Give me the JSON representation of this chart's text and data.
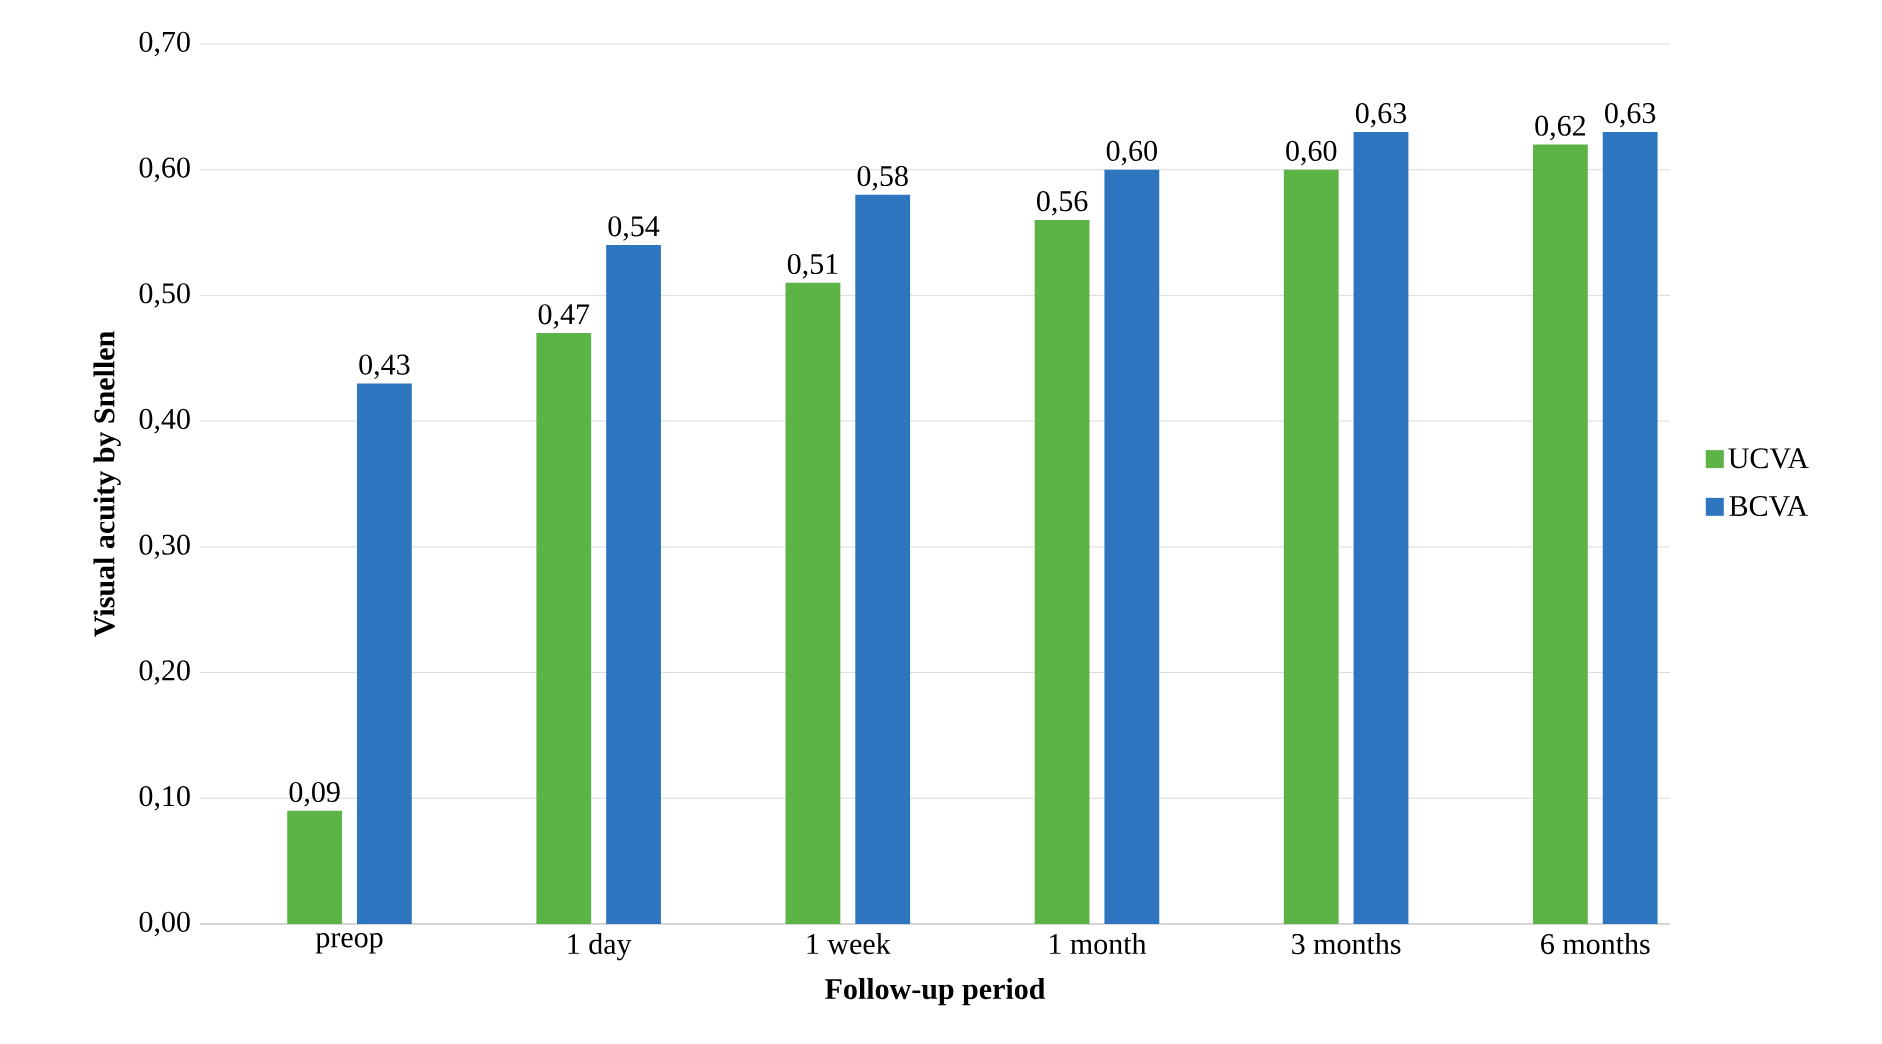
{
  "chart_data": {
    "type": "bar",
    "xlabel": "Follow-up period",
    "ylabel": "Visual acuity by Snellen",
    "categories": [
      "preop",
      "1 day",
      "1 week",
      "1 month",
      "3 months",
      "6 months"
    ],
    "series": [
      {
        "name": "UCVA",
        "color": "#5cb346",
        "values": [
          0.09,
          0.47,
          0.51,
          0.56,
          0.6,
          0.62
        ],
        "value_labels": [
          "0,09",
          "0,47",
          "0,51",
          "0,56",
          "0,60",
          "0,62"
        ]
      },
      {
        "name": "BCVA",
        "color": "#2e75c0",
        "values": [
          0.43,
          0.54,
          0.58,
          0.6,
          0.63,
          0.63
        ],
        "value_labels": [
          "0,43",
          "0,54",
          "0,58",
          "0,60",
          "0,63",
          "0,63"
        ]
      }
    ],
    "ylim": [
      0,
      0.7
    ],
    "yticks": [
      {
        "value": 0,
        "label": "0,00"
      },
      {
        "value": 0.1,
        "label": "0,10"
      },
      {
        "value": 0.2,
        "label": "0,20"
      },
      {
        "value": 0.3,
        "label": "0,30"
      },
      {
        "value": 0.4,
        "label": "0,40"
      },
      {
        "value": 0.5,
        "label": "0,50"
      },
      {
        "value": 0.6,
        "label": "0,60"
      },
      {
        "value": 0.7,
        "label": "0,70"
      }
    ],
    "grid": "y",
    "legend": "right"
  }
}
